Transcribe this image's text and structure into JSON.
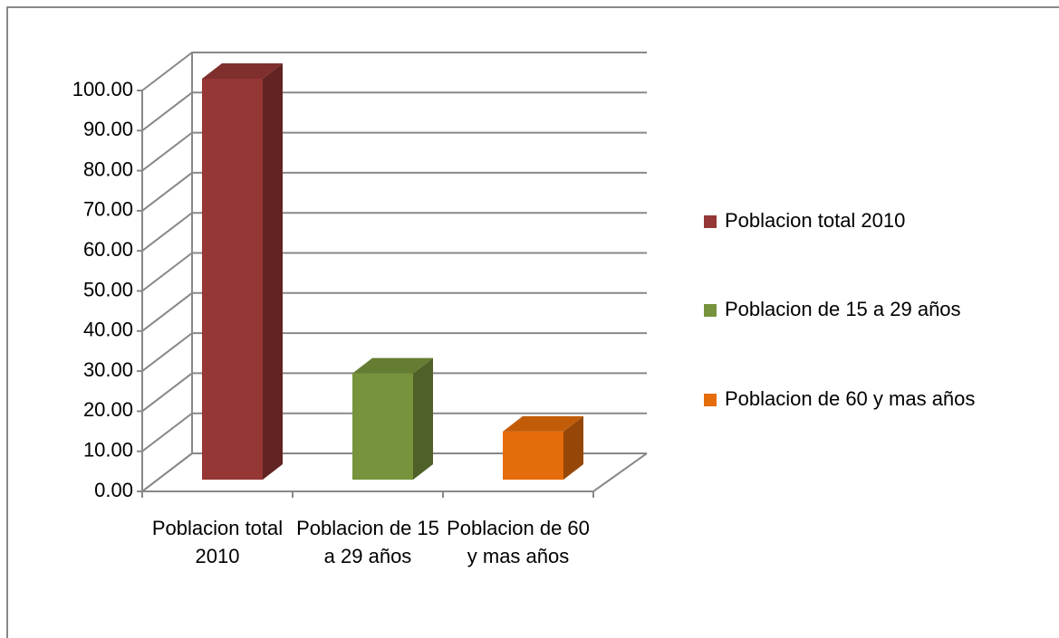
{
  "chart_data": {
    "type": "bar3d",
    "categories": [
      "Poblacion  total  2010",
      "Poblacion de 15 a 29 años",
      "Poblacion de 60 y mas años"
    ],
    "values": [
      100,
      26.5,
      12
    ],
    "colors": [
      "#953735",
      "#77933c",
      "#e46c0a"
    ],
    "ylim": [
      0,
      100
    ],
    "yticks": [
      {
        "value": 0,
        "label": "0.00"
      },
      {
        "value": 10,
        "label": "10.00"
      },
      {
        "value": 20,
        "label": "20.00"
      },
      {
        "value": 30,
        "label": "30.00"
      },
      {
        "value": 40,
        "label": "40.00"
      },
      {
        "value": 50,
        "label": "50.00"
      },
      {
        "value": 60,
        "label": "60.00"
      },
      {
        "value": 70,
        "label": "70.00"
      },
      {
        "value": 80,
        "label": "80.00"
      },
      {
        "value": 90,
        "label": "90.00"
      },
      {
        "value": 100,
        "label": "100.00"
      }
    ],
    "grid": true,
    "legend": "right"
  }
}
